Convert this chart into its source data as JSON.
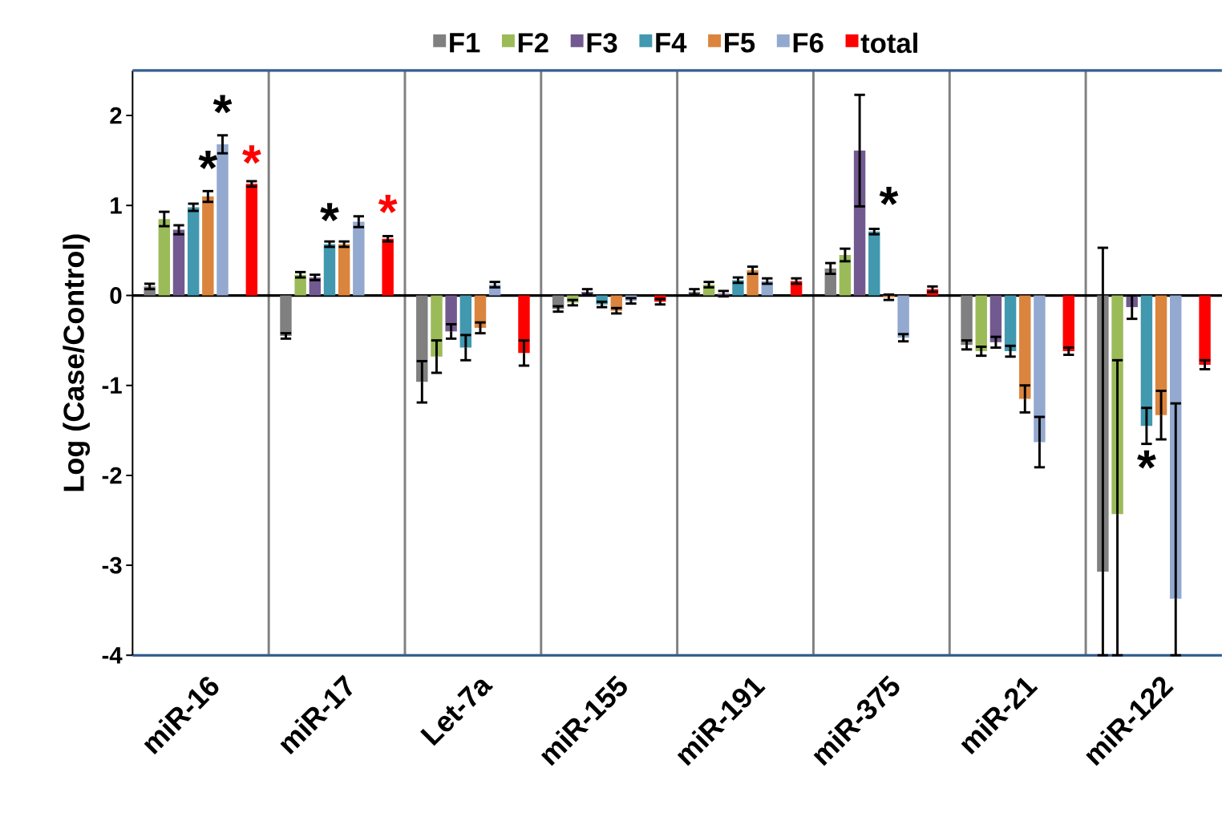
{
  "chart_data": {
    "type": "bar",
    "ylabel": "Log (Case/Control)",
    "categories": [
      "miR-16",
      "miR-17",
      "Let-7a",
      "miR-155",
      "miR-191",
      "miR-375",
      "miR-21",
      "miR-122"
    ],
    "ylim": [
      -4,
      2.5
    ],
    "yticks": [
      -4,
      -3,
      -2,
      -1,
      0,
      1,
      2
    ],
    "grid": "x",
    "legend": "top",
    "series": [
      {
        "name": "F1",
        "color": "#808080",
        "values": [
          0.1,
          -0.45,
          -0.96,
          -0.15,
          0.04,
          0.3,
          -0.55,
          -3.07
        ],
        "errors": [
          0.03,
          0.03,
          0.23,
          0.03,
          0.03,
          0.06,
          0.05,
          [
            -4,
            0.53
          ]
        ]
      },
      {
        "name": "F2",
        "color": "#9bbb59",
        "values": [
          0.85,
          0.23,
          -0.68,
          -0.08,
          0.12,
          0.45,
          -0.62,
          -2.43
        ],
        "errors": [
          0.08,
          0.03,
          0.18,
          0.03,
          0.03,
          0.07,
          0.05,
          [
            -4,
            -0.72
          ]
        ]
      },
      {
        "name": "F3",
        "color": "#725a90",
        "values": [
          0.73,
          0.2,
          -0.4,
          0.04,
          0.02,
          1.61,
          -0.52,
          -0.13
        ],
        "errors": [
          0.05,
          0.03,
          0.08,
          0.03,
          0.03,
          0.62,
          0.06,
          [
            -0.26,
            0.0
          ]
        ]
      },
      {
        "name": "F4",
        "color": "#4198af",
        "values": [
          0.98,
          0.57,
          -0.58,
          -0.1,
          0.17,
          0.71,
          -0.62,
          -1.45
        ],
        "errors": [
          0.04,
          0.03,
          0.14,
          0.03,
          0.03,
          0.03,
          0.06,
          0.2
        ]
      },
      {
        "name": "F5",
        "color": "#db843d",
        "values": [
          1.1,
          0.57,
          -0.36,
          -0.17,
          0.28,
          -0.02,
          -1.15,
          -1.33
        ],
        "errors": [
          0.06,
          0.03,
          0.06,
          0.03,
          0.04,
          0.03,
          0.15,
          0.27
        ]
      },
      {
        "name": "F6",
        "color": "#93a9cf",
        "values": [
          1.68,
          0.82,
          0.12,
          -0.06,
          0.16,
          -0.47,
          -1.63,
          -3.37
        ],
        "errors": [
          0.1,
          0.06,
          0.03,
          0.03,
          0.03,
          0.04,
          0.28,
          [
            -4,
            -1.2
          ]
        ]
      },
      {
        "name": "total",
        "color": "#ff0000",
        "values": [
          1.24,
          0.63,
          -0.64,
          -0.07,
          0.16,
          0.07,
          -0.62,
          -0.77
        ],
        "errors": [
          0.03,
          0.03,
          0.14,
          0.03,
          0.03,
          0.03,
          0.04,
          0.05
        ]
      }
    ],
    "annotations": [
      "*",
      "*",
      "*",
      "*",
      "*",
      "*",
      "*"
    ]
  }
}
